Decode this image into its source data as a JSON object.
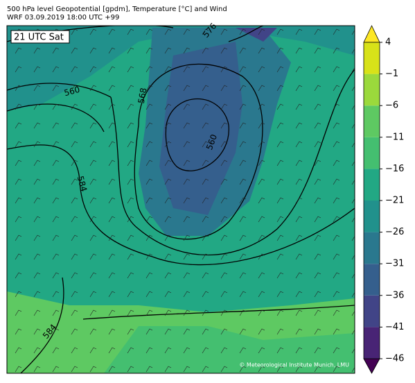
{
  "header": {
    "title": "500 hPa level Geopotential [gpdm], Temperature [°C] and Wind",
    "subtitle": "WRF 03.09.2019 18:00 UTC +99"
  },
  "map": {
    "time_label": "21 UTC Sat",
    "contour_labels": [
      560,
      576,
      568,
      560,
      584,
      584
    ],
    "credit": "© Meteorological Institute Munich, LMU"
  },
  "colorbar": {
    "ticks": [
      4,
      {
        "value": -1,
        "label": "−1"
      },
      {
        "value": -6,
        "label": "−6"
      },
      {
        "value": -11,
        "label": "−11"
      },
      {
        "value": -16,
        "label": "−16"
      },
      {
        "value": -21,
        "label": "−21"
      },
      {
        "value": -26,
        "label": "−26"
      },
      {
        "value": -31,
        "label": "−31"
      },
      {
        "value": -36,
        "label": "−36"
      },
      {
        "value": -41,
        "label": "−41"
      },
      {
        "value": -46,
        "label": "−46"
      }
    ],
    "colors": [
      "#440154",
      "#482475",
      "#414487",
      "#355f8d",
      "#2a788e",
      "#21918c",
      "#22a884",
      "#44bf70",
      "#5ec962",
      "#9bd93c",
      "#d8e219",
      "#fde725"
    ]
  }
}
